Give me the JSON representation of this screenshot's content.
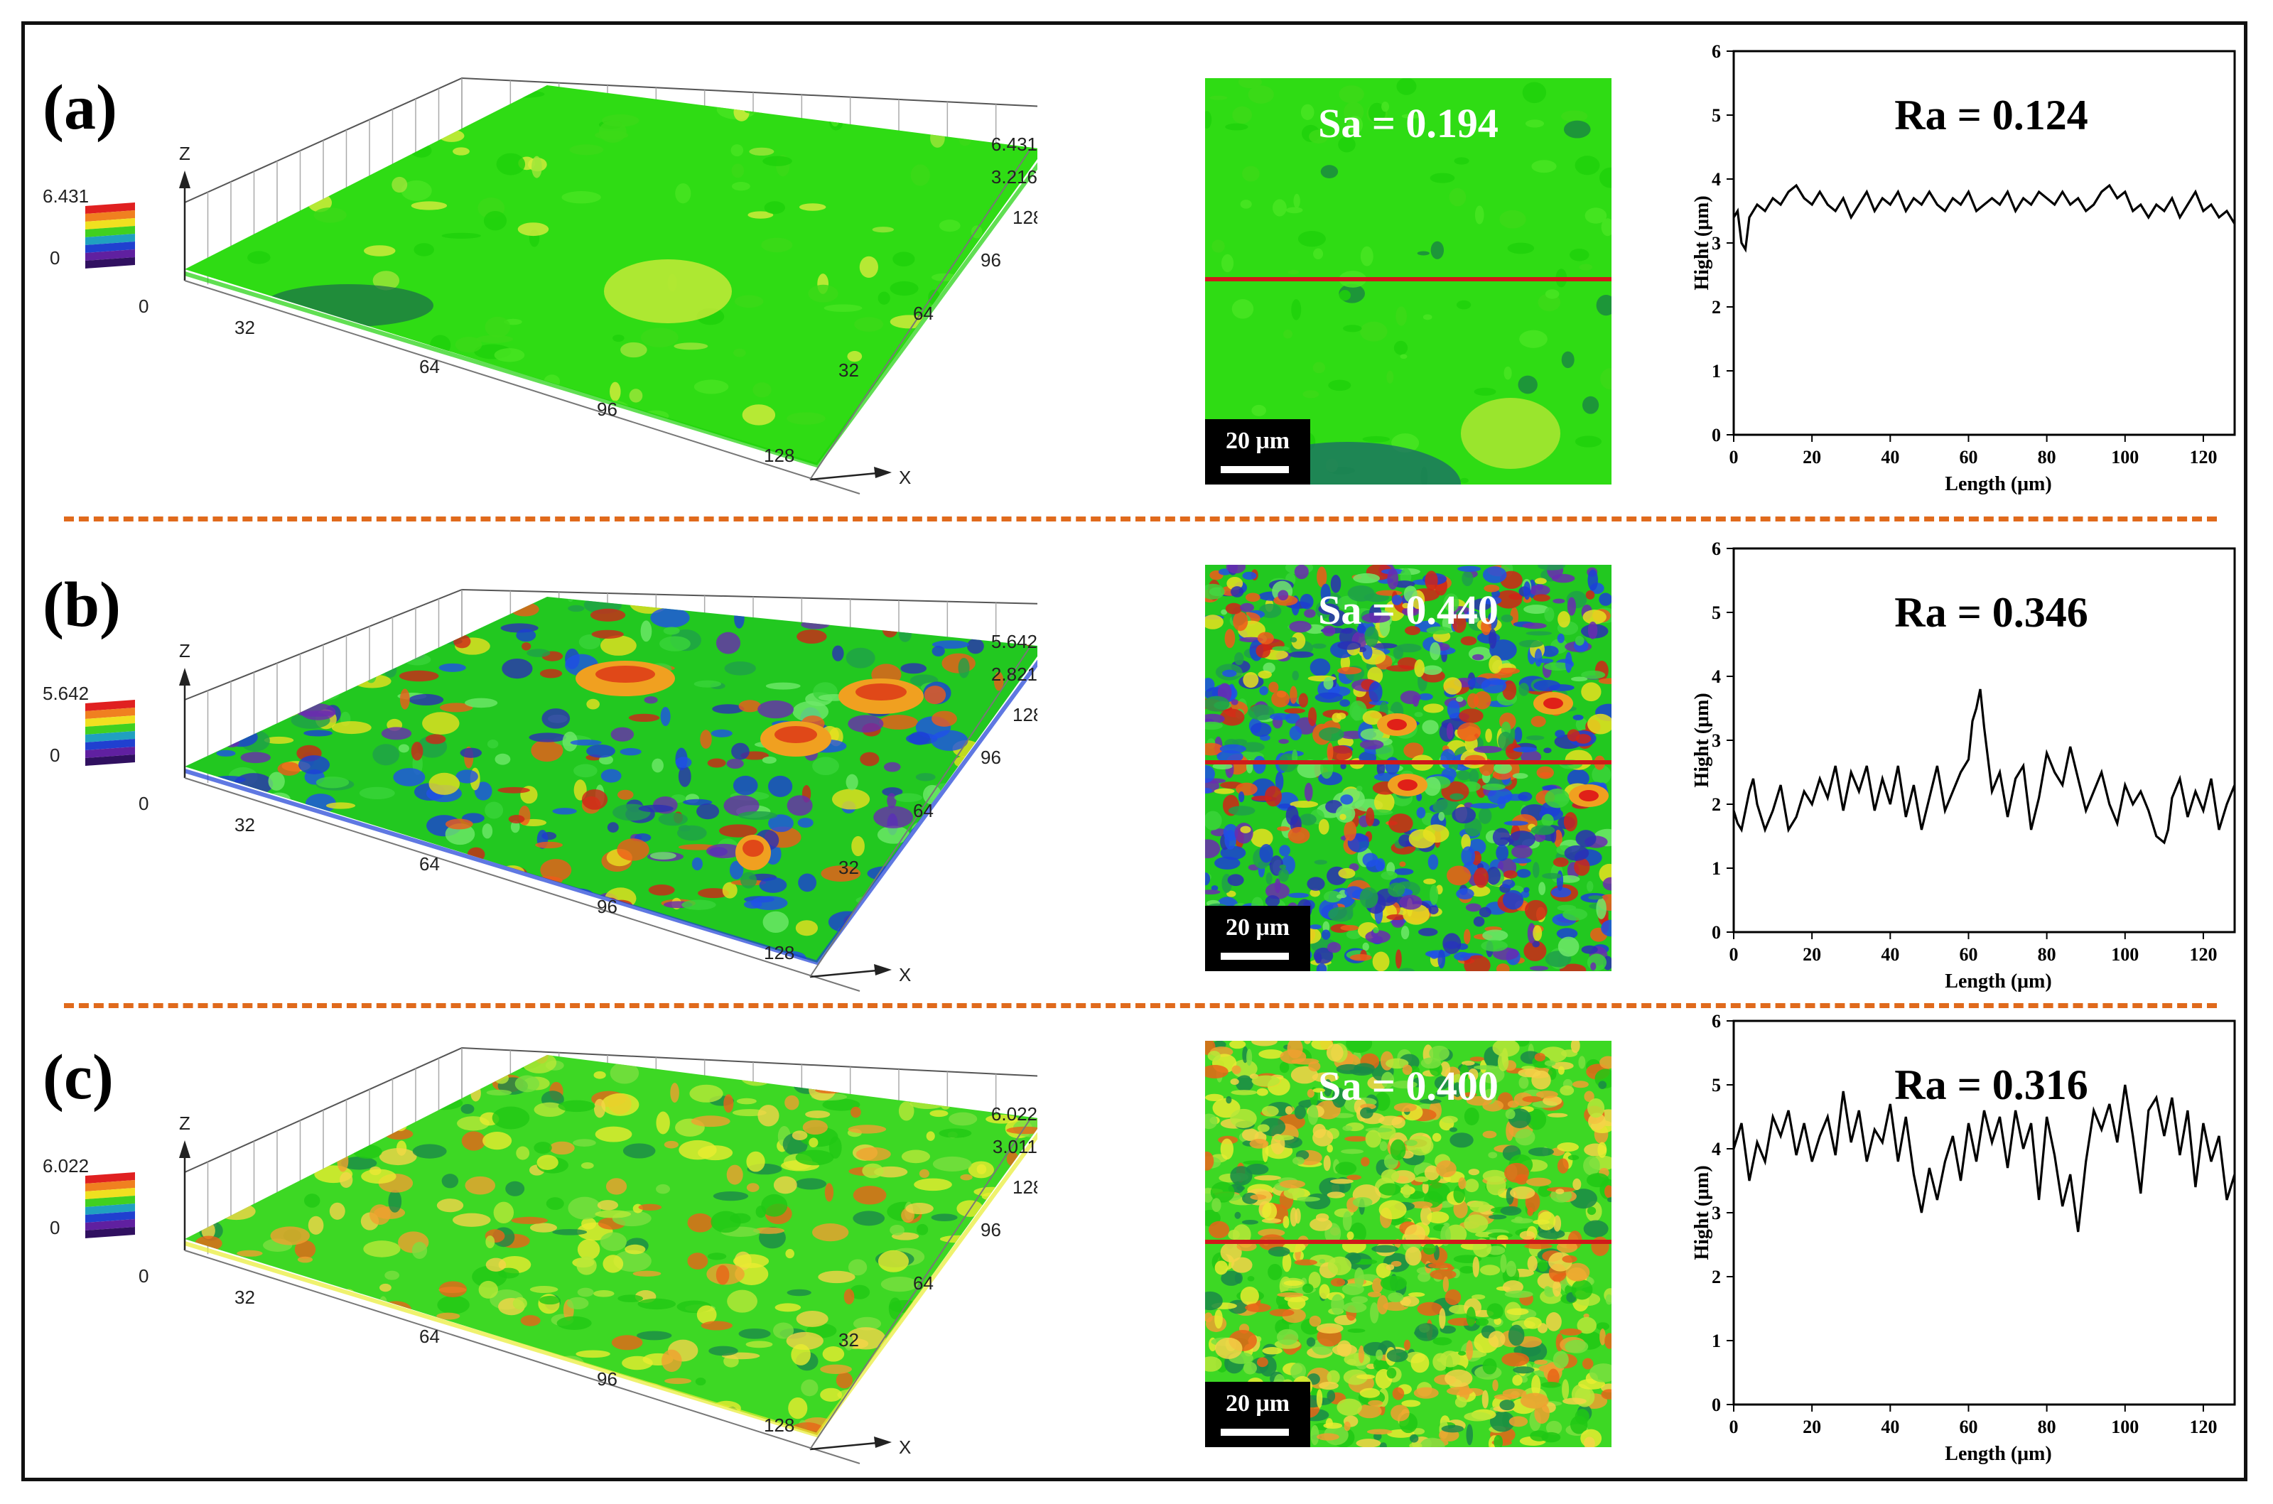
{
  "panels": [
    {
      "label": "(a)",
      "surface": {
        "axis_z": "Z",
        "axis_x": "X",
        "colorbar_max": "6.431",
        "colorbar_min": "0",
        "z_max": "6.431",
        "z_mid": "3.216",
        "y_ticks": [
          "128",
          "96",
          "64",
          "32",
          "0"
        ],
        "x_ticks": [
          "32",
          "64",
          "96",
          "128"
        ],
        "palette": "green"
      },
      "map": {
        "sa_text": "Sa = 0.194",
        "scale_label": "20 μm",
        "palette": "green"
      },
      "profile": {
        "ra_text": "Ra = 0.124",
        "xlabel": "Length (μm)",
        "ylabel": "Hight (μm)",
        "x_ticks": [
          "0",
          "20",
          "40",
          "60",
          "80",
          "100",
          "120"
        ],
        "y_ticks": [
          "0",
          "1",
          "2",
          "3",
          "4",
          "5",
          "6"
        ]
      }
    },
    {
      "label": "(b)",
      "surface": {
        "axis_z": "Z",
        "axis_x": "X",
        "colorbar_max": "5.642",
        "colorbar_min": "0",
        "z_max": "5.642",
        "z_mid": "2.821",
        "y_ticks": [
          "128",
          "96",
          "64",
          "32",
          "0"
        ],
        "x_ticks": [
          "32",
          "64",
          "96",
          "128"
        ],
        "palette": "blue"
      },
      "map": {
        "sa_text": "Sa = 0.440",
        "scale_label": "20 μm",
        "palette": "blue"
      },
      "profile": {
        "ra_text": "Ra = 0.346",
        "xlabel": "Length (μm)",
        "ylabel": "Hight (μm)",
        "x_ticks": [
          "0",
          "20",
          "40",
          "60",
          "80",
          "100",
          "120"
        ],
        "y_ticks": [
          "0",
          "1",
          "2",
          "3",
          "4",
          "5",
          "6"
        ]
      }
    },
    {
      "label": "(c)",
      "surface": {
        "axis_z": "Z",
        "axis_x": "X",
        "colorbar_max": "6.022",
        "colorbar_min": "0",
        "z_max": "6.022",
        "z_mid": "3.011",
        "y_ticks": [
          "128",
          "96",
          "64",
          "32",
          "0"
        ],
        "x_ticks": [
          "32",
          "64",
          "96",
          "128"
        ],
        "palette": "yellow"
      },
      "map": {
        "sa_text": "Sa = 0.400",
        "scale_label": "20 μm",
        "palette": "yellow"
      },
      "profile": {
        "ra_text": "Ra = 0.316",
        "xlabel": "Length (μm)",
        "ylabel": "Hight (μm)",
        "x_ticks": [
          "0",
          "20",
          "40",
          "60",
          "80",
          "100",
          "120"
        ],
        "y_ticks": [
          "0",
          "1",
          "2",
          "3",
          "4",
          "5",
          "6"
        ]
      }
    }
  ],
  "chart_data": [
    {
      "type": "line",
      "title": "Ra = 0.124",
      "xlabel": "Length (μm)",
      "ylabel": "Hight (μm)",
      "xlim": [
        0,
        128
      ],
      "ylim": [
        0,
        6
      ],
      "x": [
        0,
        1,
        2,
        3,
        4,
        6,
        8,
        10,
        12,
        14,
        16,
        18,
        20,
        22,
        24,
        26,
        28,
        30,
        32,
        34,
        36,
        38,
        40,
        42,
        44,
        46,
        48,
        50,
        52,
        54,
        56,
        58,
        60,
        62,
        64,
        66,
        68,
        70,
        72,
        74,
        76,
        78,
        80,
        82,
        84,
        86,
        88,
        90,
        92,
        94,
        96,
        98,
        100,
        102,
        104,
        106,
        108,
        110,
        112,
        114,
        116,
        118,
        120,
        122,
        124,
        126,
        128
      ],
      "values": [
        3.4,
        3.5,
        3.0,
        2.9,
        3.4,
        3.6,
        3.5,
        3.7,
        3.6,
        3.8,
        3.9,
        3.7,
        3.6,
        3.8,
        3.6,
        3.5,
        3.7,
        3.4,
        3.6,
        3.8,
        3.5,
        3.7,
        3.6,
        3.8,
        3.5,
        3.7,
        3.6,
        3.8,
        3.6,
        3.5,
        3.7,
        3.6,
        3.8,
        3.5,
        3.6,
        3.7,
        3.6,
        3.8,
        3.5,
        3.7,
        3.6,
        3.8,
        3.7,
        3.6,
        3.8,
        3.6,
        3.7,
        3.5,
        3.6,
        3.8,
        3.9,
        3.7,
        3.8,
        3.5,
        3.6,
        3.4,
        3.6,
        3.5,
        3.7,
        3.4,
        3.6,
        3.8,
        3.5,
        3.6,
        3.4,
        3.5,
        3.3
      ]
    },
    {
      "type": "line",
      "title": "Ra = 0.346",
      "xlabel": "Length (μm)",
      "ylabel": "Hight (μm)",
      "xlim": [
        0,
        128
      ],
      "ylim": [
        0,
        6
      ],
      "x": [
        0,
        1,
        2,
        4,
        5,
        6,
        8,
        10,
        12,
        14,
        16,
        18,
        20,
        22,
        24,
        26,
        28,
        30,
        32,
        34,
        36,
        38,
        40,
        42,
        44,
        46,
        48,
        50,
        52,
        54,
        56,
        58,
        60,
        61,
        62,
        63,
        64,
        66,
        68,
        70,
        72,
        74,
        76,
        78,
        80,
        82,
        84,
        86,
        88,
        90,
        92,
        94,
        96,
        98,
        100,
        102,
        104,
        106,
        108,
        110,
        111,
        112,
        114,
        116,
        118,
        120,
        122,
        124,
        126,
        128
      ],
      "values": [
        1.9,
        1.7,
        1.6,
        2.2,
        2.4,
        2.0,
        1.6,
        1.9,
        2.3,
        1.6,
        1.8,
        2.2,
        2.0,
        2.4,
        2.1,
        2.6,
        1.9,
        2.5,
        2.2,
        2.6,
        1.9,
        2.4,
        2.0,
        2.6,
        1.8,
        2.3,
        1.6,
        2.1,
        2.6,
        1.9,
        2.2,
        2.5,
        2.7,
        3.3,
        3.5,
        3.8,
        3.2,
        2.2,
        2.5,
        1.8,
        2.4,
        2.6,
        1.6,
        2.1,
        2.8,
        2.5,
        2.3,
        2.9,
        2.4,
        1.9,
        2.2,
        2.5,
        2.0,
        1.7,
        2.3,
        2.0,
        2.2,
        1.9,
        1.5,
        1.4,
        1.6,
        2.1,
        2.4,
        1.8,
        2.2,
        1.9,
        2.4,
        1.6,
        2.0,
        2.3
      ]
    },
    {
      "type": "line",
      "title": "Ra = 0.316",
      "xlabel": "Length (μm)",
      "ylabel": "Hight (μm)",
      "xlim": [
        0,
        128
      ],
      "ylim": [
        0,
        6
      ],
      "x": [
        0,
        2,
        4,
        6,
        8,
        10,
        12,
        14,
        16,
        18,
        20,
        22,
        24,
        26,
        28,
        30,
        32,
        34,
        36,
        38,
        40,
        42,
        44,
        46,
        48,
        50,
        52,
        54,
        56,
        58,
        60,
        62,
        64,
        66,
        68,
        70,
        72,
        74,
        76,
        78,
        80,
        82,
        84,
        86,
        88,
        90,
        92,
        94,
        96,
        98,
        100,
        102,
        104,
        106,
        108,
        110,
        112,
        114,
        116,
        118,
        120,
        122,
        124,
        126,
        128
      ],
      "values": [
        4.0,
        4.4,
        3.5,
        4.1,
        3.8,
        4.5,
        4.2,
        4.6,
        3.9,
        4.4,
        3.8,
        4.2,
        4.5,
        3.9,
        4.9,
        4.1,
        4.6,
        3.8,
        4.3,
        4.1,
        4.7,
        3.8,
        4.5,
        3.6,
        3.0,
        3.7,
        3.2,
        3.8,
        4.2,
        3.5,
        4.4,
        3.8,
        4.6,
        4.1,
        4.5,
        3.7,
        4.6,
        4.0,
        4.4,
        3.2,
        4.5,
        3.9,
        3.1,
        3.6,
        2.7,
        3.8,
        4.6,
        4.3,
        4.7,
        4.1,
        5.0,
        4.2,
        3.3,
        4.6,
        4.8,
        4.2,
        4.8,
        3.9,
        4.6,
        3.4,
        4.4,
        3.8,
        4.2,
        3.2,
        3.6
      ]
    }
  ]
}
